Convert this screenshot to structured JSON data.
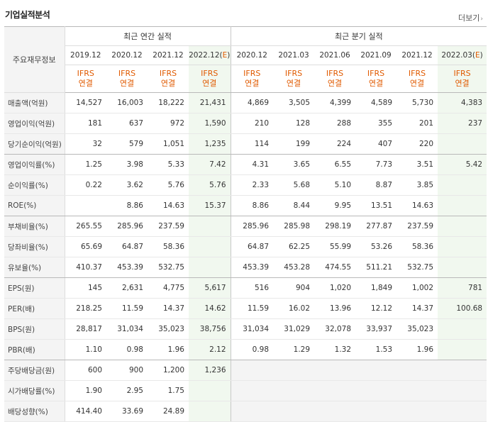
{
  "section": {
    "title": "기업실적분석",
    "more": "더보기",
    "more_arrow": "›"
  },
  "header": {
    "row_label": "주요재무정보",
    "annual_group": "최근 연간 실적",
    "quarter_group": "최근 분기 실적",
    "annual_periods": [
      "2019.12",
      "2020.12",
      "2021.12"
    ],
    "annual_est": {
      "prefix": "2022.12",
      "open": "(",
      "mark": "E",
      "close": ")"
    },
    "quarter_periods": [
      "2020.12",
      "2021.03",
      "2021.06",
      "2021.09",
      "2021.12"
    ],
    "quarter_est": {
      "prefix": "2022.03",
      "open": "(",
      "mark": "E",
      "close": ")"
    },
    "ifrs_line1": "IFRS",
    "ifrs_line2": "연결"
  },
  "rows": [
    {
      "label": "매출액(억원)",
      "values": [
        "14,527",
        "16,003",
        "18,222",
        "21,431",
        "4,869",
        "3,505",
        "4,399",
        "4,589",
        "5,730",
        "4,383"
      ]
    },
    {
      "label": "영업이익(억원)",
      "values": [
        "181",
        "637",
        "972",
        "1,590",
        "210",
        "128",
        "288",
        "355",
        "201",
        "237"
      ]
    },
    {
      "label": "당기순이익(억원)",
      "values": [
        "32",
        "579",
        "1,051",
        "1,235",
        "114",
        "199",
        "224",
        "407",
        "220",
        ""
      ]
    },
    {
      "label": "영업이익률(%)",
      "values": [
        "1.25",
        "3.98",
        "5.33",
        "7.42",
        "4.31",
        "3.65",
        "6.55",
        "7.73",
        "3.51",
        "5.42"
      ]
    },
    {
      "label": "순이익률(%)",
      "values": [
        "0.22",
        "3.62",
        "5.76",
        "5.76",
        "2.33",
        "5.68",
        "5.10",
        "8.87",
        "3.85",
        ""
      ]
    },
    {
      "label": "ROE(%)",
      "values": [
        "",
        "8.86",
        "14.63",
        "15.37",
        "8.86",
        "8.44",
        "9.95",
        "13.51",
        "14.63",
        ""
      ]
    },
    {
      "label": "부채비율(%)",
      "values": [
        "265.55",
        "285.96",
        "237.59",
        "",
        "285.96",
        "285.98",
        "298.19",
        "277.87",
        "237.59",
        ""
      ]
    },
    {
      "label": "당좌비율(%)",
      "values": [
        "65.69",
        "64.87",
        "58.36",
        "",
        "64.87",
        "62.25",
        "55.99",
        "53.26",
        "58.36",
        ""
      ]
    },
    {
      "label": "유보율(%)",
      "values": [
        "410.37",
        "453.39",
        "532.75",
        "",
        "453.39",
        "453.28",
        "474.55",
        "511.21",
        "532.75",
        ""
      ]
    },
    {
      "label": "EPS(원)",
      "values": [
        "145",
        "2,631",
        "4,775",
        "5,617",
        "516",
        "904",
        "1,020",
        "1,849",
        "1,002",
        "781"
      ]
    },
    {
      "label": "PER(배)",
      "values": [
        "218.25",
        "11.59",
        "14.37",
        "14.62",
        "11.59",
        "16.02",
        "13.96",
        "12.12",
        "14.37",
        "100.68"
      ]
    },
    {
      "label": "BPS(원)",
      "values": [
        "28,817",
        "31,034",
        "35,023",
        "38,756",
        "31,034",
        "31,029",
        "32,078",
        "33,937",
        "35,023",
        ""
      ]
    },
    {
      "label": "PBR(배)",
      "values": [
        "1.10",
        "0.98",
        "1.96",
        "2.12",
        "0.98",
        "1.29",
        "1.32",
        "1.53",
        "1.96",
        ""
      ]
    },
    {
      "label": "주당배당금(원)",
      "values": [
        "600",
        "900",
        "1,200",
        "1,236",
        "",
        "",
        "",
        "",
        "",
        ""
      ]
    },
    {
      "label": "시가배당률(%)",
      "values": [
        "1.90",
        "2.95",
        "1.75",
        "",
        "",
        "",
        "",
        "",
        "",
        ""
      ]
    },
    {
      "label": "배당성향(%)",
      "values": [
        "414.40",
        "33.69",
        "24.89",
        "",
        "",
        "",
        "",
        "",
        "",
        ""
      ]
    }
  ],
  "colors": {
    "accent_orange": "#e05a00",
    "estimate_bg": "#f1f8ef",
    "label_bg": "#f4f4f4"
  }
}
